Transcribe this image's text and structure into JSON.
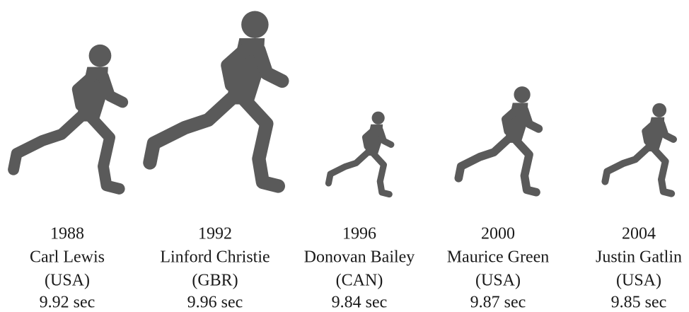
{
  "chart_data": {
    "type": "pictograph",
    "categories": [
      "1988",
      "1992",
      "1996",
      "2000",
      "2004"
    ],
    "names": [
      "Carl Lewis",
      "Linford Christie",
      "Donovan Bailey",
      "Maurice Green",
      "Justin Gatlin"
    ],
    "countries": [
      "(USA)",
      "(GBR)",
      "(CAN)",
      "(USA)",
      "(USA)"
    ],
    "values": [
      9.92,
      9.96,
      9.84,
      9.87,
      9.85
    ],
    "value_labels": [
      "9.92 sec",
      "9.96 sec",
      "9.84 sec",
      "9.87 sec",
      "9.85 sec"
    ],
    "color": "#5a5a5a"
  }
}
